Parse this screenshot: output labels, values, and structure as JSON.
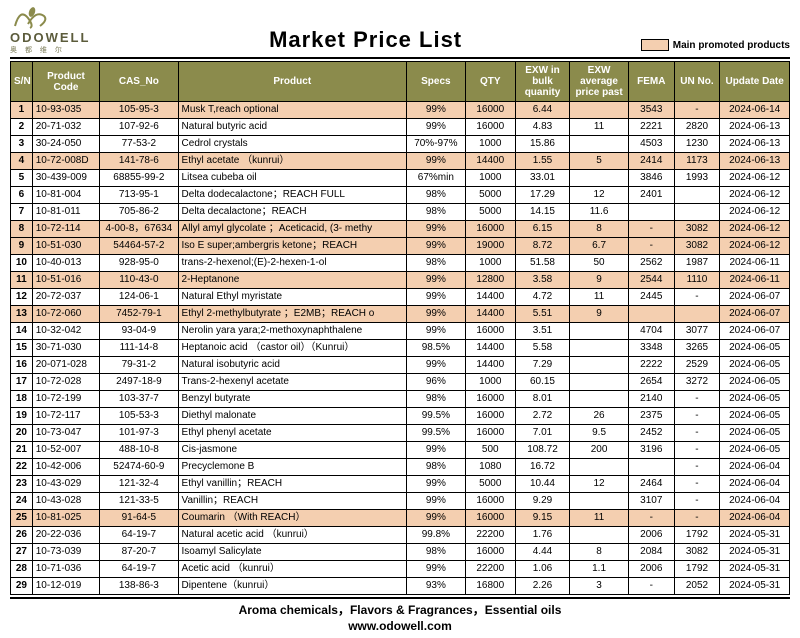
{
  "brand": {
    "name": "ODOWELL",
    "sub": "奥 都 维 尔"
  },
  "title": "Market  Price List",
  "legend_label": "Main promoted products",
  "highlight_color": "#f4cfb0",
  "header_bg": "#8b8b4c",
  "columns": [
    "S/N",
    "Product Code",
    "CAS_No",
    "Product",
    "Specs",
    "QTY",
    "EXW in bulk quanity",
    "EXW average price past",
    "FEMA",
    "UN No.",
    "Update Date"
  ],
  "column_classes": [
    "c-sn",
    "c-code",
    "c-cas",
    "c-prod",
    "c-spec",
    "c-qty",
    "c-bulk",
    "c-avg",
    "c-fema",
    "c-un",
    "c-date"
  ],
  "cell_align": [
    "center",
    "left",
    "center",
    "left",
    "center",
    "center",
    "center",
    "center",
    "center",
    "center",
    "center"
  ],
  "rows": [
    {
      "hl": true,
      "cells": [
        "1",
        "10-93-035",
        "105-95-3",
        "Musk T,reach optional",
        "99%",
        "16000",
        "6.44",
        "",
        "3543",
        "-",
        "2024-06-14"
      ]
    },
    {
      "hl": false,
      "cells": [
        "2",
        "20-71-032",
        "107-92-6",
        "Natural butyric acid",
        "99%",
        "16000",
        "4.83",
        "11",
        "2221",
        "2820",
        "2024-06-13"
      ]
    },
    {
      "hl": false,
      "cells": [
        "3",
        "30-24-050",
        "77-53-2",
        "Cedrol crystals",
        "70%-97%",
        "1000",
        "15.86",
        "",
        "4503",
        "1230",
        "2024-06-13"
      ]
    },
    {
      "hl": true,
      "cells": [
        "4",
        "10-72-008D",
        "141-78-6",
        "Ethyl acetate （kunrui）",
        "99%",
        "14400",
        "1.55",
        "5",
        "2414",
        "1173",
        "2024-06-13"
      ]
    },
    {
      "hl": false,
      "cells": [
        "5",
        "30-439-009",
        "68855-99-2",
        "Litsea cubeba oil",
        "67%min",
        "1000",
        "33.01",
        "",
        "3846",
        "1993",
        "2024-06-12"
      ]
    },
    {
      "hl": false,
      "cells": [
        "6",
        "10-81-004",
        "713-95-1",
        "Delta dodecalactone；REACH FULL",
        "98%",
        "5000",
        "17.29",
        "12",
        "2401",
        "",
        "2024-06-12"
      ]
    },
    {
      "hl": false,
      "cells": [
        "7",
        "10-81-011",
        "705-86-2",
        "Delta decalactone；REACH",
        "98%",
        "5000",
        "14.15",
        "11.6",
        "",
        "",
        "2024-06-12"
      ]
    },
    {
      "hl": true,
      "cells": [
        "8",
        "10-72-114",
        "4-00-8，67634",
        "Allyl amyl glycolate ；Aceticacid, (3- methy",
        "99%",
        "16000",
        "6.15",
        "8",
        "-",
        "3082",
        "2024-06-12"
      ]
    },
    {
      "hl": true,
      "cells": [
        "9",
        "10-51-030",
        "54464-57-2",
        "Iso E super;ambergris ketone；REACH",
        "99%",
        "19000",
        "8.72",
        "6.7",
        "-",
        "3082",
        "2024-06-12"
      ]
    },
    {
      "hl": false,
      "cells": [
        "10",
        "10-40-013",
        "928-95-0",
        "trans-2-hexenol;(E)-2-hexen-1-ol",
        "98%",
        "1000",
        "51.58",
        "50",
        "2562",
        "1987",
        "2024-06-11"
      ]
    },
    {
      "hl": true,
      "cells": [
        "11",
        "10-51-016",
        "110-43-0",
        "2-Heptanone",
        "99%",
        "12800",
        "3.58",
        "9",
        "2544",
        "1110",
        "2024-06-11"
      ]
    },
    {
      "hl": false,
      "cells": [
        "12",
        "20-72-037",
        "124-06-1",
        "Natural Ethyl myristate",
        "99%",
        "14400",
        "4.72",
        "11",
        "2445",
        "-",
        "2024-06-07"
      ]
    },
    {
      "hl": true,
      "cells": [
        "13",
        "10-72-060",
        "7452-79-1",
        "Ethyl 2-methylbutyrate ；E2MB；REACH o",
        "99%",
        "14400",
        "5.51",
        "9",
        "",
        "",
        "2024-06-07"
      ]
    },
    {
      "hl": false,
      "cells": [
        "14",
        "10-32-042",
        "93-04-9",
        "Nerolin yara yara;2-methoxynaphthalene",
        "99%",
        "16000",
        "3.51",
        "",
        "4704",
        "3077",
        "2024-06-07"
      ]
    },
    {
      "hl": false,
      "cells": [
        "15",
        "30-71-030",
        "111-14-8",
        "Heptanoic acid （castor oil）（Kunrui）",
        "98.5%",
        "14400",
        "5.58",
        "",
        "3348",
        "3265",
        "2024-06-05"
      ]
    },
    {
      "hl": false,
      "cells": [
        "16",
        "20-071-028",
        "79-31-2",
        "Natural isobutyric acid",
        "99%",
        "14400",
        "7.29",
        "",
        "2222",
        "2529",
        "2024-06-05"
      ]
    },
    {
      "hl": false,
      "cells": [
        "17",
        "10-72-028",
        "2497-18-9",
        "Trans-2-hexenyl acetate",
        "96%",
        "1000",
        "60.15",
        "",
        "2654",
        "3272",
        "2024-06-05"
      ]
    },
    {
      "hl": false,
      "cells": [
        "18",
        "10-72-199",
        "103-37-7",
        "Benzyl butyrate",
        "98%",
        "16000",
        "8.01",
        "",
        "2140",
        "-",
        "2024-06-05"
      ]
    },
    {
      "hl": false,
      "cells": [
        "19",
        "10-72-117",
        "105-53-3",
        "Diethyl malonate",
        "99.5%",
        "16000",
        "2.72",
        "26",
        "2375",
        "-",
        "2024-06-05"
      ]
    },
    {
      "hl": false,
      "cells": [
        "20",
        "10-73-047",
        "101-97-3",
        "Ethyl phenyl acetate",
        "99.5%",
        "16000",
        "7.01",
        "9.5",
        "2452",
        "-",
        "2024-06-05"
      ]
    },
    {
      "hl": false,
      "cells": [
        "21",
        "10-52-007",
        "488-10-8",
        "Cis-jasmone",
        "99%",
        "500",
        "108.72",
        "200",
        "3196",
        "-",
        "2024-06-05"
      ]
    },
    {
      "hl": false,
      "cells": [
        "22",
        "10-42-006",
        "52474-60-9",
        "Precyclemone B",
        "98%",
        "1080",
        "16.72",
        "",
        "",
        "-",
        "2024-06-04"
      ]
    },
    {
      "hl": false,
      "cells": [
        "23",
        "10-43-029",
        "121-32-4",
        "Ethyl vanillin；REACH",
        "99%",
        "5000",
        "10.44",
        "12",
        "2464",
        "-",
        "2024-06-04"
      ]
    },
    {
      "hl": false,
      "cells": [
        "24",
        "10-43-028",
        "121-33-5",
        "Vanillin；REACH",
        "99%",
        "16000",
        "9.29",
        "",
        "3107",
        "-",
        "2024-06-04"
      ]
    },
    {
      "hl": true,
      "cells": [
        "25",
        "10-81-025",
        "91-64-5",
        "Coumarin （With REACH）",
        "99%",
        "16000",
        "9.15",
        "11",
        "-",
        "-",
        "2024-06-04"
      ]
    },
    {
      "hl": false,
      "cells": [
        "26",
        "20-22-036",
        "64-19-7",
        "Natural acetic acid （kunrui）",
        "99.8%",
        "22200",
        "1.76",
        "",
        "2006",
        "1792",
        "2024-05-31"
      ]
    },
    {
      "hl": false,
      "cells": [
        "27",
        "10-73-039",
        "87-20-7",
        "Isoamyl Salicylate",
        "98%",
        "16000",
        "4.44",
        "8",
        "2084",
        "3082",
        "2024-05-31"
      ]
    },
    {
      "hl": false,
      "cells": [
        "28",
        "10-71-036",
        "64-19-7",
        "Acetic acid （kunrui）",
        "99%",
        "22200",
        "1.06",
        "1.1",
        "2006",
        "1792",
        "2024-05-31"
      ]
    },
    {
      "hl": false,
      "cells": [
        "29",
        "10-12-019",
        "138-86-3",
        "Dipentene（kunrui）",
        "93%",
        "16800",
        "2.26",
        "3",
        "-",
        "2052",
        "2024-05-31"
      ]
    }
  ],
  "footer_line1": "Aroma chemicals，Flavors & Fragrances，Essential oils",
  "footer_line2": "www.odowell.com"
}
